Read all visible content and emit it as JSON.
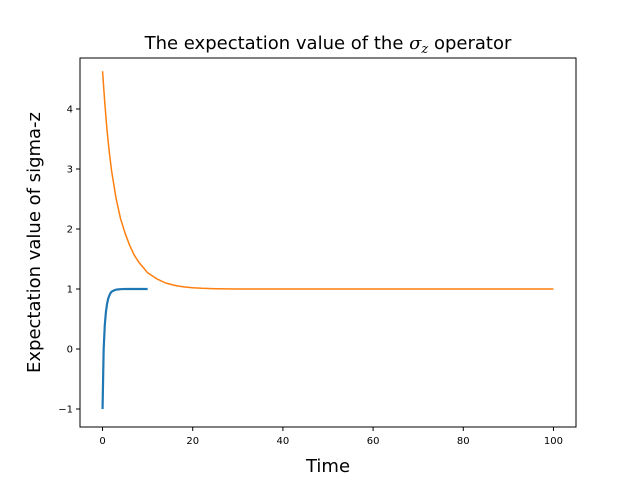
{
  "chart_data": {
    "type": "line",
    "title": {
      "before": "The expectation value of the ",
      "symbol": "σ",
      "subscript": "z",
      "after": " operator"
    },
    "xlabel": "Time",
    "ylabel": "Expectation value of sigma-z",
    "xlim": [
      -5,
      105
    ],
    "ylim": [
      -1.3,
      4.85
    ],
    "xticks": [
      0,
      20,
      40,
      60,
      80,
      100
    ],
    "xtick_labels": [
      "0",
      "20",
      "40",
      "60",
      "80",
      "100"
    ],
    "yticks": [
      -1,
      0,
      1,
      2,
      3,
      4
    ],
    "ytick_labels": [
      "−1",
      "0",
      "1",
      "2",
      "3",
      "4"
    ],
    "grid": false,
    "legend": "none",
    "series": [
      {
        "color": "#1f77b4",
        "line_width": 2.2,
        "x": [
          0,
          0.25,
          0.5,
          0.75,
          1,
          1.25,
          1.5,
          1.75,
          2,
          2.5,
          3,
          3.5,
          4,
          4.5,
          5,
          6,
          7,
          8,
          9,
          10
        ],
        "y": [
          -1.0,
          0.0,
          0.4,
          0.62,
          0.75,
          0.84,
          0.89,
          0.93,
          0.955,
          0.975,
          0.988,
          0.994,
          0.997,
          0.999,
          1.0,
          1.0,
          1.0,
          1.0,
          1.0,
          1.0
        ]
      },
      {
        "color": "#ff7f0e",
        "line_width": 1.5,
        "x": [
          0,
          0.5,
          1,
          1.5,
          2,
          3,
          4,
          5,
          6,
          7,
          8,
          9,
          10,
          12,
          14,
          16,
          18,
          20,
          22,
          25,
          30,
          35,
          40,
          50,
          60,
          70,
          80,
          90,
          100
        ],
        "y": [
          4.63,
          4.1,
          3.64,
          3.28,
          2.97,
          2.51,
          2.17,
          1.93,
          1.73,
          1.57,
          1.45,
          1.36,
          1.27,
          1.17,
          1.1,
          1.06,
          1.035,
          1.02,
          1.012,
          1.005,
          1.001,
          1.0,
          1.0,
          1.0,
          1.0,
          1.0,
          1.0,
          1.0,
          1.0
        ]
      }
    ]
  }
}
